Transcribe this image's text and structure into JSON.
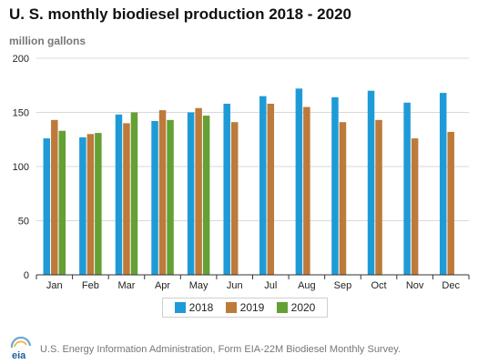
{
  "title": "U. S. monthly biodiesel production 2018 - 2020",
  "unit_label": "million gallons",
  "source": "U.S. Energy Information Administration, Form EIA-22M Biodiesel Monthly Survey.",
  "logo_text": "eia",
  "colors": {
    "2018": "#1e9bd7",
    "2019": "#bd7a3a",
    "2020": "#64a034",
    "grid": "#d9d9d9",
    "axis": "#333333"
  },
  "chart_data": {
    "type": "bar",
    "title": "U. S. monthly biodiesel production 2018 - 2020",
    "ylabel": "million gallons",
    "xlabel": "",
    "categories": [
      "Jan",
      "Feb",
      "Mar",
      "Apr",
      "May",
      "Jun",
      "Jul",
      "Aug",
      "Sep",
      "Oct",
      "Nov",
      "Dec"
    ],
    "series": [
      {
        "name": "2018",
        "values": [
          126,
          127,
          148,
          142,
          150,
          158,
          165,
          172,
          164,
          170,
          159,
          168
        ]
      },
      {
        "name": "2019",
        "values": [
          143,
          130,
          140,
          152,
          154,
          141,
          158,
          155,
          141,
          143,
          126,
          132
        ]
      },
      {
        "name": "2020",
        "values": [
          133,
          131,
          150,
          143,
          147,
          null,
          null,
          null,
          null,
          null,
          null,
          null
        ]
      }
    ],
    "ylim": [
      0,
      200
    ],
    "yticks": [
      0,
      50,
      100,
      150,
      200
    ],
    "grid": true,
    "legend_position": "bottom"
  }
}
